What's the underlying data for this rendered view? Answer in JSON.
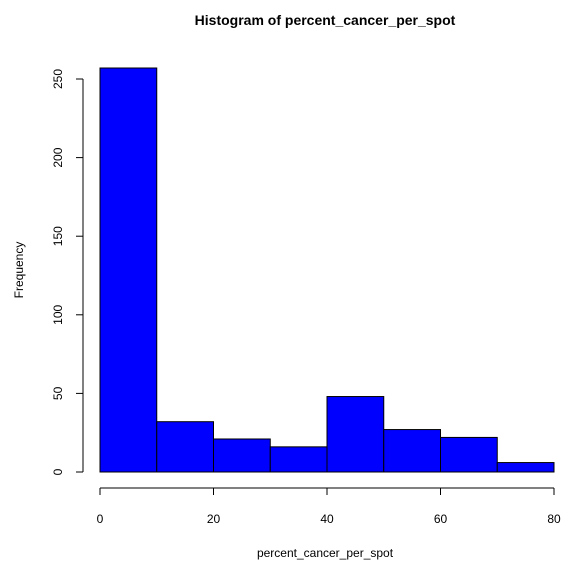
{
  "chart_data": {
    "type": "bar",
    "title": "Histogram of percent_cancer_per_spot",
    "xlabel": "percent_cancer_per_spot",
    "ylabel": "Frequency",
    "bins": [
      {
        "start": 0,
        "end": 10,
        "count": 257
      },
      {
        "start": 10,
        "end": 20,
        "count": 32
      },
      {
        "start": 20,
        "end": 30,
        "count": 21
      },
      {
        "start": 30,
        "end": 40,
        "count": 16
      },
      {
        "start": 40,
        "end": 50,
        "count": 48
      },
      {
        "start": 50,
        "end": 60,
        "count": 27
      },
      {
        "start": 60,
        "end": 70,
        "count": 22
      },
      {
        "start": 70,
        "end": 80,
        "count": 6
      }
    ],
    "xlim": [
      0,
      80
    ],
    "ylim": [
      0,
      257
    ],
    "xticks": [
      0,
      20,
      40,
      60,
      80
    ],
    "yticks": [
      0,
      50,
      100,
      150,
      200,
      250
    ],
    "bar_color": "#0000ff",
    "edge_color": "#000000",
    "grid": false
  }
}
